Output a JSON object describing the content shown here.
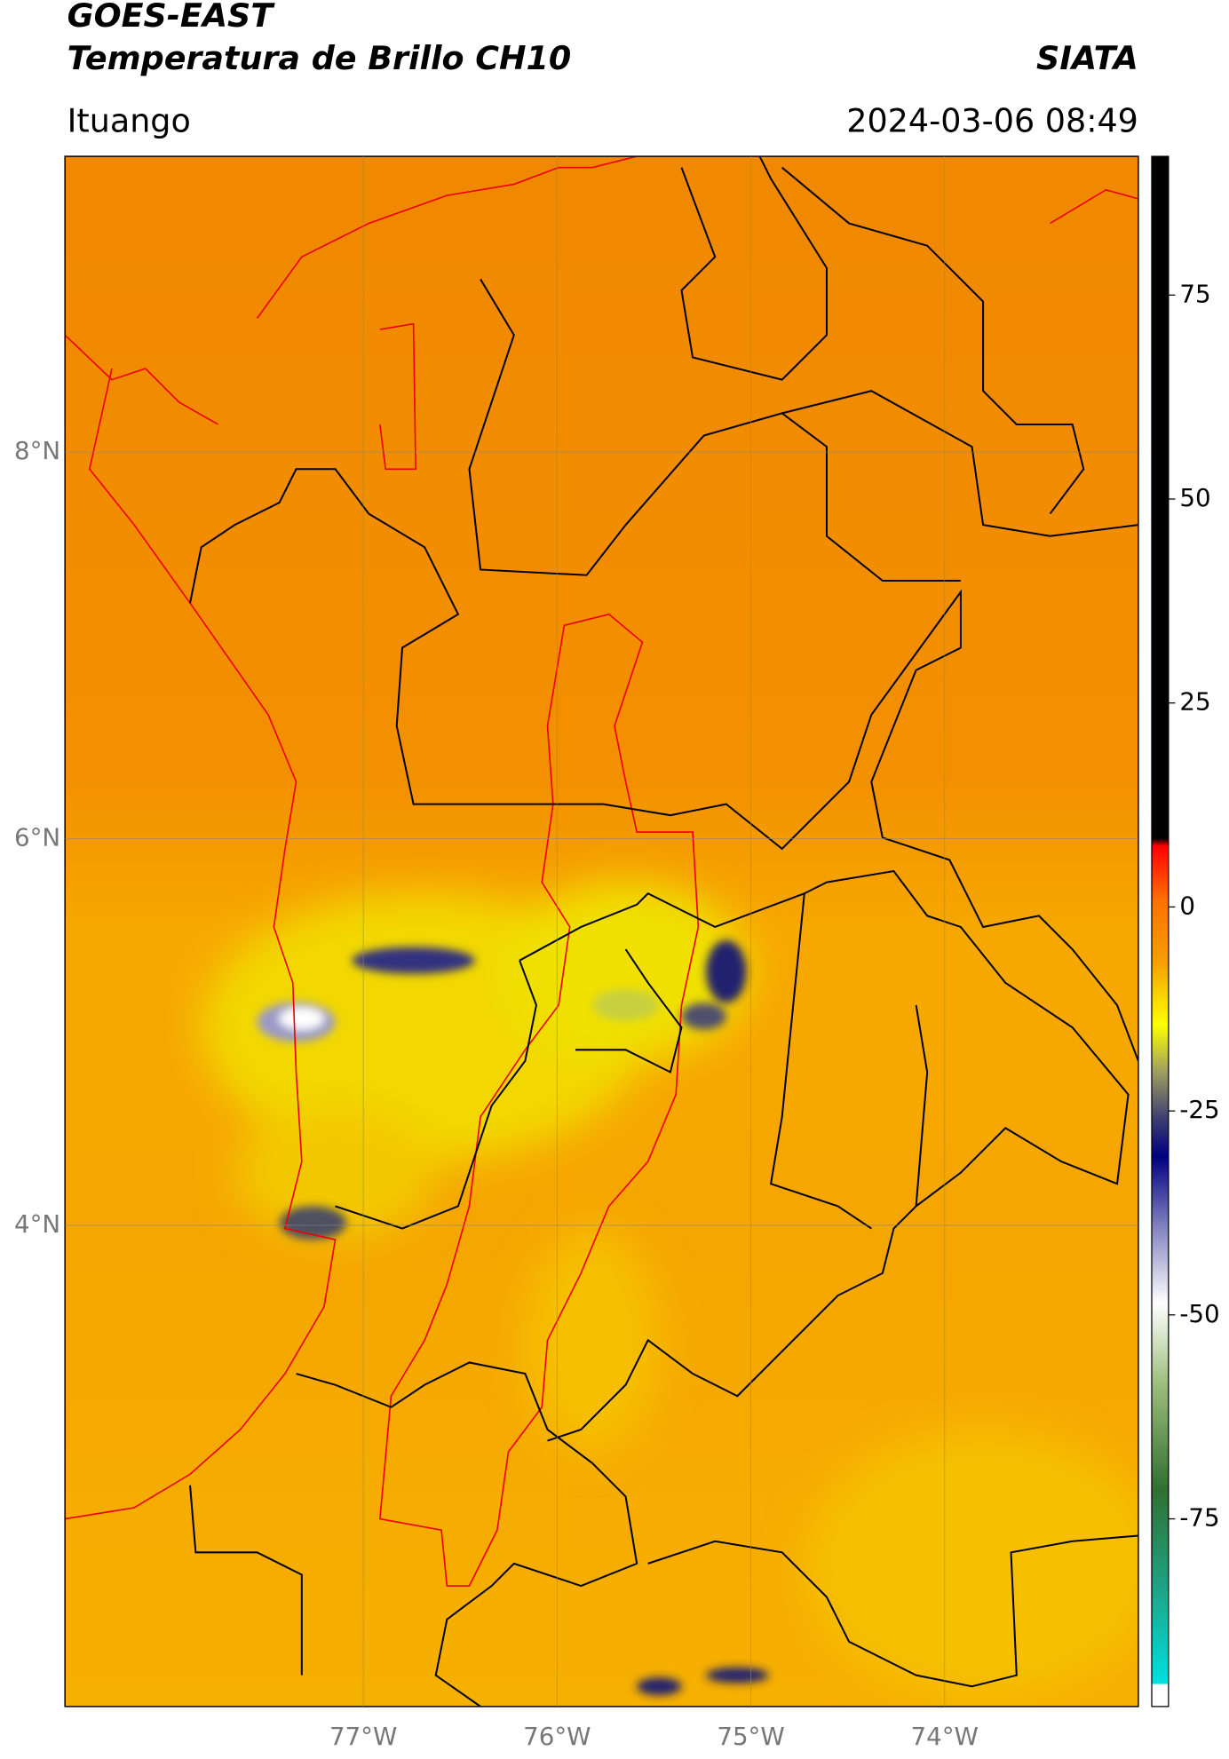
{
  "header": {
    "title_line1": "GOES-EAST",
    "title_line2": "Temperatura de Brillo CH10",
    "source": "SIATA",
    "location": "Ituango",
    "timestamp": "2024-03-06 08:49"
  },
  "map": {
    "xlim": [
      -78.54,
      -73.0
    ],
    "ylim": [
      1.51,
      9.53
    ],
    "xticks": [
      {
        "value": -77,
        "label": "77°W"
      },
      {
        "value": -76,
        "label": "76°W"
      },
      {
        "value": -75,
        "label": "75°W"
      },
      {
        "value": -74,
        "label": "74°W"
      }
    ],
    "yticks": [
      {
        "value": 8,
        "label": "8°N"
      },
      {
        "value": 6,
        "label": "6°N"
      },
      {
        "value": 4,
        "label": "4°N"
      }
    ],
    "grid": true
  },
  "colorbar": {
    "clim": [
      -98,
      92
    ],
    "ticks": [
      75,
      50,
      25,
      0,
      -25,
      -50,
      -75
    ]
  }
}
